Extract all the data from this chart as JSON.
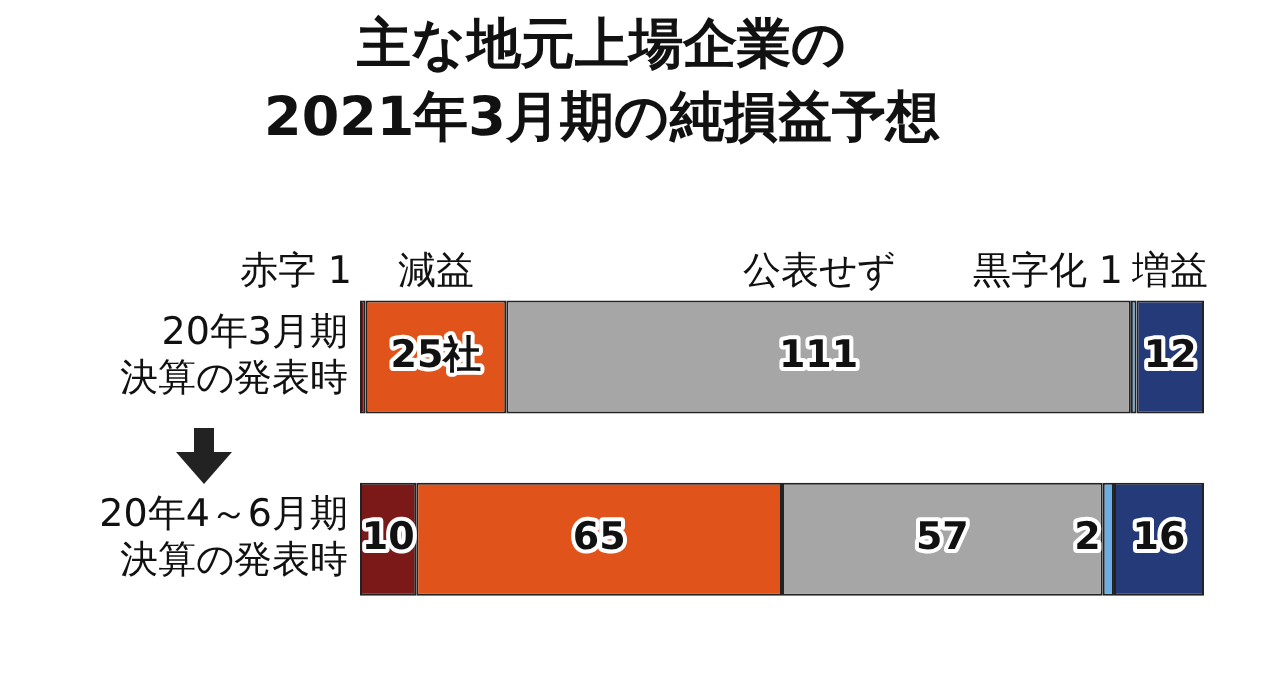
{
  "chart_data": {
    "type": "bar",
    "orientation": "horizontal",
    "stacked": true,
    "title": "主な地元上場企業の\n2021年3月期の純損益予想",
    "categories": [
      "20年3月期決算の発表時",
      "20年4～6月期決算の発表時"
    ],
    "xlim": [
      0,
      150
    ],
    "tick_labels": "y",
    "series": [
      {
        "name": "赤字",
        "color": "#7b1818",
        "values": [
          1,
          10
        ],
        "value_labels": [
          "1",
          "10"
        ]
      },
      {
        "name": "減益",
        "color": "#e0541b",
        "values": [
          25,
          65
        ],
        "value_labels": [
          "25社",
          "65"
        ]
      },
      {
        "name": "公表せず",
        "color": "#a6a6a6",
        "values": [
          111,
          57
        ],
        "value_labels": [
          "111",
          "57"
        ]
      },
      {
        "name": "黒字化",
        "color": "#6aaee6",
        "values": [
          1,
          2
        ],
        "value_labels": [
          "1",
          "2"
        ]
      },
      {
        "name": "増益",
        "color": "#253a78",
        "values": [
          12,
          16
        ],
        "value_labels": [
          "12",
          "16"
        ]
      }
    ]
  }
}
